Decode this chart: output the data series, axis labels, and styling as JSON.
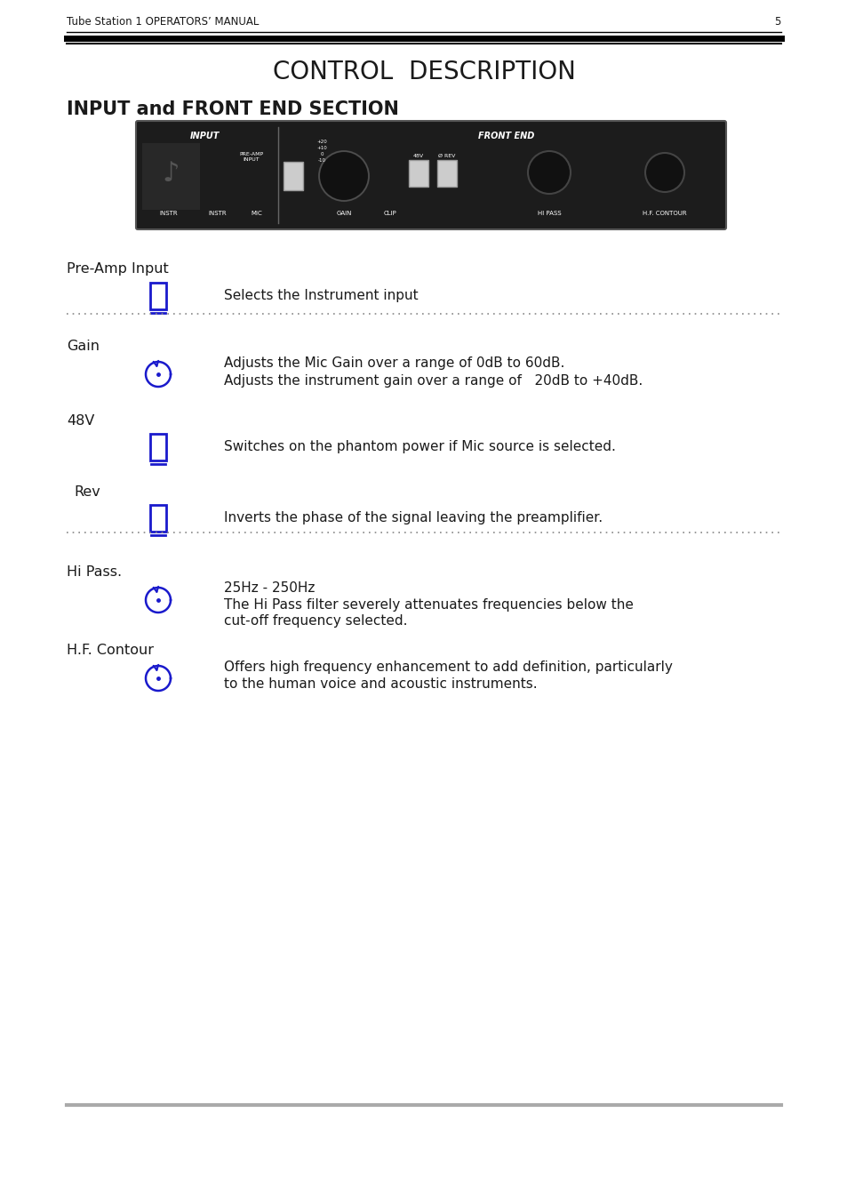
{
  "page_title": "CONTROL  DESCRIPTION",
  "section_title": "INPUT and FRONT END SECTION",
  "header_text": "Tube Station 1 OPERATORS’ MANUAL",
  "page_number": "5",
  "bg_color": "#ffffff",
  "text_color": "#1a1a1a",
  "icon_color": "#1a1acc",
  "dotted_color": "#888888",
  "footer_line_color": "#aaaaaa"
}
